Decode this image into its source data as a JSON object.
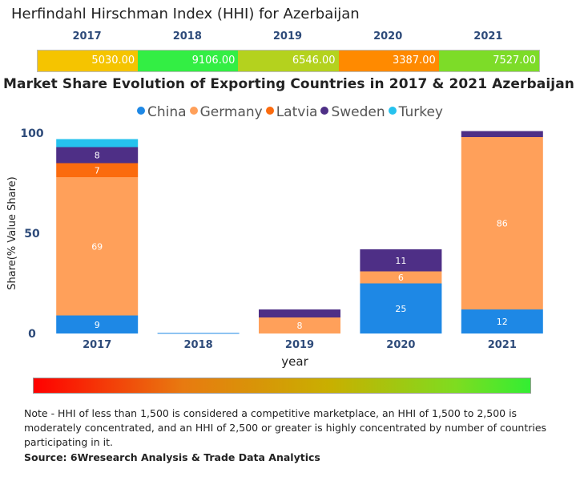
{
  "hhi": {
    "title": "Herfindahl Hirschman Index (HHI) for Azerbaijan",
    "items": [
      {
        "year": "2017",
        "value": "5030.00",
        "color": "#f5c400"
      },
      {
        "year": "2018",
        "value": "9106.00",
        "color": "#33ee44"
      },
      {
        "year": "2019",
        "value": "6546.00",
        "color": "#b4d21e"
      },
      {
        "year": "2020",
        "value": "3387.00",
        "color": "#ff8a00"
      },
      {
        "year": "2021",
        "value": "7527.00",
        "color": "#7ddc28"
      }
    ]
  },
  "chart_data": {
    "type": "bar",
    "stacked": true,
    "title": "Market Share Evolution of Exporting Countries in 2017 & 2021 Azerbaijan",
    "xlabel": "year",
    "ylabel": "Share(% Value Share)",
    "ylim": [
      0,
      100
    ],
    "yticks": [
      "0",
      "50",
      "100"
    ],
    "categories": [
      "2017",
      "2018",
      "2019",
      "2020",
      "2021"
    ],
    "series": [
      {
        "name": "China",
        "color": "#1e88e5",
        "values": [
          9,
          0.3,
          0,
          25,
          12
        ],
        "labels": [
          "9",
          "",
          "",
          "25",
          "12"
        ]
      },
      {
        "name": "Germany",
        "color": "#ffa05a",
        "values": [
          69,
          0,
          8,
          6,
          86
        ],
        "labels": [
          "69",
          "",
          "8",
          "6",
          "86"
        ]
      },
      {
        "name": "Latvia",
        "color": "#fb6b0e",
        "values": [
          7,
          0,
          0,
          0,
          0
        ],
        "labels": [
          "7",
          "",
          "",
          "",
          ""
        ]
      },
      {
        "name": "Sweden",
        "color": "#4e2f86",
        "values": [
          8,
          0,
          4,
          11,
          3
        ],
        "labels": [
          "8",
          "",
          "",
          "11",
          ""
        ]
      },
      {
        "name": "Turkey",
        "color": "#26c2ee",
        "values": [
          4,
          0,
          0,
          0,
          0
        ],
        "labels": [
          "",
          "",
          "",
          "",
          ""
        ]
      }
    ],
    "legend_position": "top-center"
  },
  "note": "Note - HHI of less than 1,500 is considered a competitive marketplace, an HHI of 1,500 to 2,500 is moderately concentrated, and an HHI of 2,500 or greater is highly concentrated by number of countries participating in it.",
  "source": "Source: 6Wresearch Analysis & Trade Data Analytics"
}
